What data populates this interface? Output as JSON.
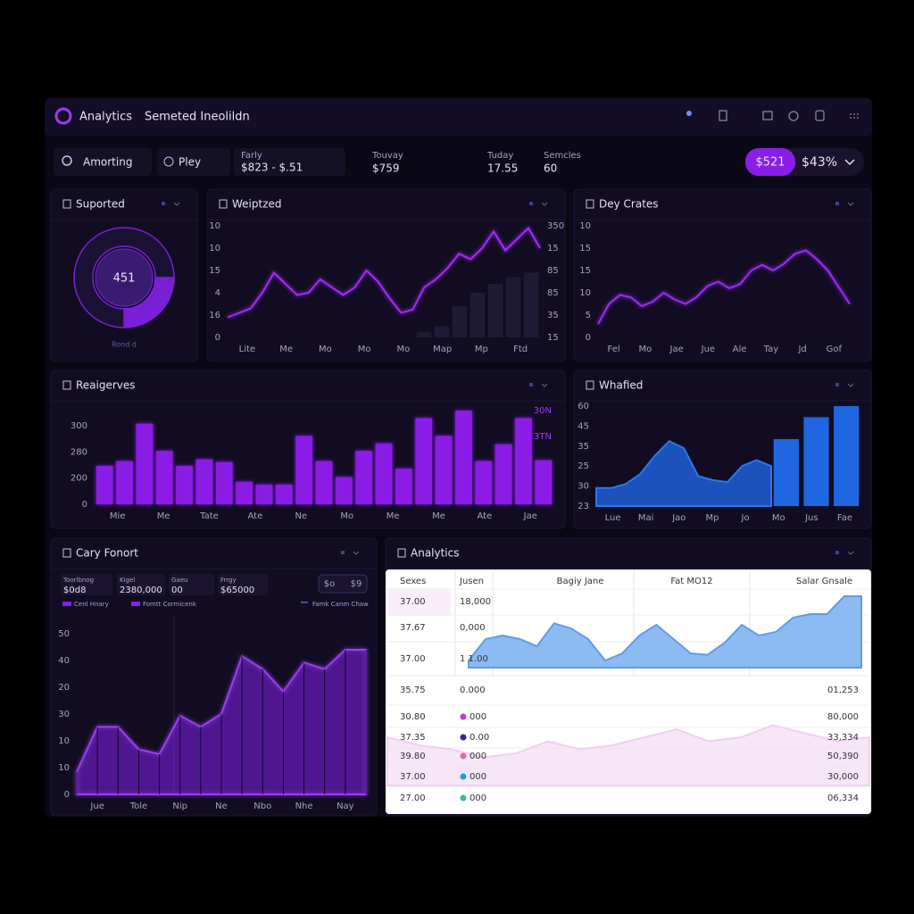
{
  "header": {
    "title": "Analytics",
    "subtitle": "Semeted Ineolildn"
  },
  "toolbar": {
    "search": "Amorting",
    "button": "Pley",
    "range_label": "Farly",
    "range_value": "$823 - $.51",
    "stats": [
      {
        "label": "Touvay",
        "value": "$759"
      },
      {
        "label": "Tuday",
        "value": "17.55"
      },
      {
        "label": "Semcles",
        "value": "60"
      }
    ],
    "pill_active": "$521",
    "pill_value": "$43%"
  },
  "supported": {
    "title": "Suported",
    "chart": {
      "type": "donut",
      "center": "451",
      "caption": "Rond d",
      "values": [
        25,
        75
      ],
      "colors": [
        "#7b1fd6",
        "#1b1233"
      ]
    }
  },
  "weighted": {
    "title": "Weiptzed",
    "chart": {
      "type": "combo",
      "ylim": [
        0,
        100
      ],
      "y_labels": [
        "10",
        "10",
        "15",
        "4",
        "16",
        "0"
      ],
      "y2_labels": [
        "350",
        "15",
        "85",
        "85",
        "35",
        "15"
      ],
      "x_labels": [
        "Lite",
        "Me",
        "Mo",
        "Mo",
        "Mo",
        "Map",
        "Mp",
        "Ftd"
      ],
      "series": [
        {
          "type": "bar",
          "color": "#1f1a36",
          "values": [
            5,
            10,
            28,
            40,
            48,
            54,
            58
          ]
        },
        {
          "type": "line",
          "color": "#a22cf5",
          "values": [
            18,
            22,
            26,
            40,
            58,
            48,
            38,
            40,
            52,
            45,
            38,
            45,
            60,
            50,
            35,
            22,
            25,
            45,
            52,
            62,
            75,
            70,
            80,
            95,
            78,
            88,
            98,
            80
          ]
        }
      ]
    }
  },
  "days": {
    "title": "Dey Crates",
    "chart": {
      "type": "line",
      "ylim": [
        0,
        100
      ],
      "y_labels": [
        "10",
        "15",
        "15",
        "10",
        "5",
        "0"
      ],
      "x_labels": [
        "Fel",
        "Mo",
        "Jae",
        "Jue",
        "Ale",
        "Tay",
        "Jd",
        "Gof"
      ],
      "series": [
        {
          "type": "line",
          "color": "#9b2cf0",
          "values": [
            12,
            30,
            38,
            36,
            28,
            32,
            40,
            34,
            30,
            36,
            46,
            50,
            44,
            48,
            60,
            65,
            60,
            66,
            75,
            78,
            70,
            60,
            45,
            30
          ]
        }
      ]
    }
  },
  "reserves": {
    "title": "Reaigerves",
    "chart": {
      "type": "bar",
      "ylim": [
        0,
        100
      ],
      "y_labels": [
        "300",
        "280",
        "200",
        "0"
      ],
      "y2_labels": [
        "30N",
        "3TN"
      ],
      "x_labels": [
        "Mie",
        "Me",
        "Tate",
        "Ate",
        "Ne",
        "Mo",
        "Me",
        "Me",
        "Ate",
        "Jae"
      ],
      "series": [
        {
          "type": "bar",
          "color": "#8a1ee6",
          "values": [
            41,
            46,
            86,
            57,
            41,
            48,
            45,
            24,
            21,
            21,
            73,
            46,
            29,
            57,
            65,
            38,
            92,
            73,
            100,
            46,
            64,
            92,
            47
          ]
        }
      ]
    }
  },
  "whafied": {
    "title": "Whafied",
    "chart": {
      "type": "combo",
      "ylim": [
        0,
        100
      ],
      "y_labels": [
        "60",
        "45",
        "35",
        "25",
        "30",
        "23"
      ],
      "x_labels": [
        "Lue",
        "Mai",
        "Jao",
        "Mp",
        "Jo",
        "Mo",
        "Jus",
        "Fae"
      ],
      "series": [
        {
          "type": "area",
          "color": "#1f5fd6",
          "values": [
            18,
            18,
            22,
            32,
            50,
            65,
            58,
            30,
            26,
            24,
            40,
            46,
            40
          ]
        },
        {
          "type": "bar",
          "color": "#1f66e0",
          "values": [
            67,
            89,
            100
          ]
        }
      ]
    }
  },
  "cary": {
    "title": "Cary Fonort",
    "stats": [
      {
        "label": "Toorlbnog",
        "value": "$0d8"
      },
      {
        "label": "Kigel",
        "value": "2380,000"
      },
      {
        "label": "Gaeu",
        "value": "00"
      },
      {
        "label": "Frrgy",
        "value": "$65000"
      }
    ],
    "toggle": [
      "$o",
      "$9"
    ],
    "legend": [
      "Cenl Hnary",
      "Fomtt Cormicenk",
      "Famk Canm Chaw"
    ],
    "chart": {
      "type": "area",
      "ylim": [
        0,
        100
      ],
      "y_labels": [
        "50",
        "40",
        "20",
        "30",
        "10",
        "10",
        "0"
      ],
      "x_labels": [
        "Jue",
        "Tole",
        "Nip",
        "Ne",
        "Nbo",
        "Nhe",
        "Nay"
      ],
      "series": [
        {
          "type": "area",
          "color": "#7a22e0",
          "values": [
            14,
            42,
            42,
            28,
            25,
            49,
            42,
            50,
            86,
            78,
            64,
            82,
            78,
            90,
            90
          ]
        }
      ]
    }
  },
  "table": {
    "title": "Analytics",
    "columns": [
      "Sexes",
      "Jusen",
      "Bagiy Jane",
      "Fat MO12",
      "Salar Gnsale"
    ],
    "rows": [
      {
        "a": "37.00",
        "b": "18,000"
      },
      {
        "a": "37.67",
        "b": "0,000"
      },
      {
        "a": "37.00",
        "b": "1 1.00"
      },
      {
        "a": "35.75",
        "b": "0.000",
        "end": "01,253"
      },
      {
        "a": "30.80",
        "b": "000",
        "end": "80,000",
        "dot": "#c43ad6"
      },
      {
        "a": "37.35",
        "b": "0.00",
        "end": "33,334",
        "dot": "#3a1fb0"
      },
      {
        "a": "39.80",
        "b": "000",
        "end": "50,390",
        "dot": "#e26aa8"
      },
      {
        "a": "37.00",
        "b": "000",
        "end": "30,000",
        "dot": "#2a9ad6"
      },
      {
        "a": "27.00",
        "b": "000",
        "end": "06,334",
        "dot": "#2ac0a0"
      }
    ],
    "top_chart": {
      "type": "area",
      "ylim": [
        0,
        100
      ],
      "series": [
        {
          "type": "area",
          "color": "#7fb4f0",
          "values": [
            10,
            40,
            45,
            40,
            30,
            62,
            55,
            40,
            10,
            20,
            45,
            60,
            40,
            20,
            18,
            35,
            60,
            45,
            50,
            70,
            75,
            75,
            100,
            100
          ]
        }
      ]
    },
    "bottom_chart": {
      "type": "area",
      "ylim": [
        0,
        100
      ],
      "series": [
        {
          "type": "area",
          "color": "#f3dcf3",
          "values": [
            60,
            50,
            45,
            35,
            40,
            55,
            45,
            50,
            60,
            70,
            55,
            60,
            75,
            65,
            55,
            60
          ]
        }
      ]
    }
  }
}
